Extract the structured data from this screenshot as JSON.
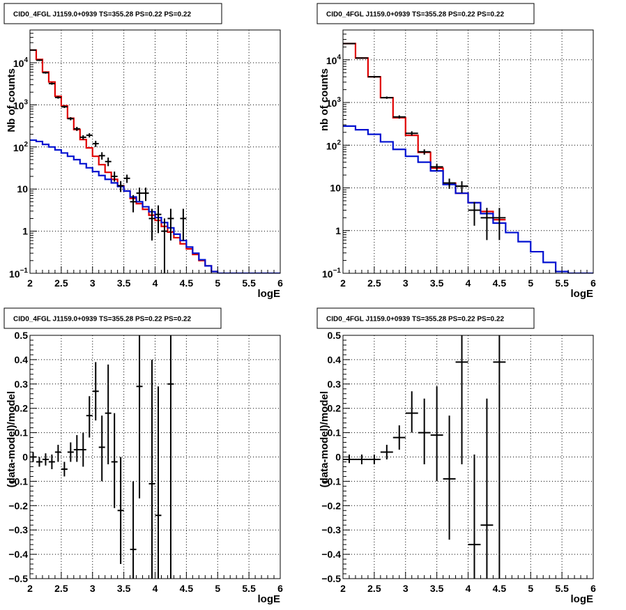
{
  "colors": {
    "data": "#000000",
    "total_model": "#e00000",
    "background_model": "#0010d0",
    "grid": "#000000"
  },
  "chart_data": [
    {
      "type": "line",
      "panel": "top-left",
      "title": "CID0_4FGL J1159.0+0939 TS=355.28 PS=0.22 PS=0.22",
      "xlabel": "logE",
      "ylabel": "Nb of counts",
      "xlim": [
        2,
        6
      ],
      "ylim": [
        0.1,
        60000
      ],
      "yscale": "log",
      "grid": true,
      "x_ticks": [
        "2",
        "2.5",
        "3",
        "3.5",
        "4",
        "4.5",
        "5",
        "5.5",
        "6"
      ],
      "y_ticks": [
        {
          "v": 0.1,
          "base": "10",
          "exp": "−1"
        },
        {
          "v": 1,
          "label": "1"
        },
        {
          "v": 10,
          "label": "10"
        },
        {
          "v": 100,
          "base": "10",
          "exp": "2"
        },
        {
          "v": 1000,
          "base": "10",
          "exp": "3"
        },
        {
          "v": 10000,
          "base": "10",
          "exp": "4"
        }
      ],
      "bin_edges": [
        2.0,
        2.1,
        2.2,
        2.3,
        2.4,
        2.5,
        2.6,
        2.7,
        2.8,
        2.9,
        3.0,
        3.1,
        3.2,
        3.3,
        3.4,
        3.5,
        3.6,
        3.7,
        3.8,
        3.9,
        4.0,
        4.1,
        4.2,
        4.3,
        4.4,
        4.5,
        4.6,
        4.7,
        4.8,
        4.9,
        5.0,
        5.1,
        5.2,
        5.3,
        5.4,
        5.5,
        5.6,
        5.7,
        5.8,
        5.9,
        6.0
      ],
      "series": [
        {
          "role": "total_model",
          "values": [
            20000,
            12000,
            6000,
            3500,
            1600,
            950,
            480,
            260,
            150,
            95,
            60,
            38,
            25,
            17,
            12,
            9,
            6,
            4.5,
            3.3,
            2.4,
            1.8,
            1.3,
            0.95,
            0.7,
            0.5,
            0.38,
            0.28,
            0.2,
            0.15,
            0.11
          ]
        },
        {
          "role": "background_model",
          "values": [
            145,
            135,
            115,
            100,
            85,
            72,
            60,
            50,
            40,
            32,
            26,
            21,
            17,
            14,
            11.5,
            9,
            6.5,
            5,
            3.8,
            2.9,
            2.1,
            1.6,
            1.2,
            0.85,
            0.6,
            0.42,
            0.3,
            0.21,
            0.15,
            0.11,
            0.1,
            0.1,
            0.1,
            0.1,
            0.1,
            0.1,
            0.1,
            0.1,
            0.1,
            0.1
          ]
        },
        {
          "role": "data",
          "points": [
            {
              "x": 2.05,
              "y": 20000,
              "lo": 19400,
              "hi": 20600
            },
            {
              "x": 2.15,
              "y": 11500,
              "lo": 11000,
              "hi": 12000
            },
            {
              "x": 2.25,
              "y": 5800,
              "lo": 5500,
              "hi": 6100
            },
            {
              "x": 2.35,
              "y": 3200,
              "lo": 3000,
              "hi": 3400
            },
            {
              "x": 2.45,
              "y": 1500,
              "lo": 1400,
              "hi": 1600
            },
            {
              "x": 2.55,
              "y": 900,
              "lo": 840,
              "hi": 960
            },
            {
              "x": 2.65,
              "y": 470,
              "lo": 430,
              "hi": 510
            },
            {
              "x": 2.75,
              "y": 270,
              "lo": 240,
              "hi": 300
            },
            {
              "x": 2.85,
              "y": 170,
              "lo": 150,
              "hi": 190
            },
            {
              "x": 2.95,
              "y": 190,
              "lo": 168,
              "hi": 212
            },
            {
              "x": 3.05,
              "y": 120,
              "lo": 100,
              "hi": 140
            },
            {
              "x": 3.15,
              "y": 62,
              "lo": 50,
              "hi": 75
            },
            {
              "x": 3.25,
              "y": 45,
              "lo": 35,
              "hi": 56
            },
            {
              "x": 3.35,
              "y": 20,
              "lo": 15,
              "hi": 26
            },
            {
              "x": 3.45,
              "y": 12,
              "lo": 8.5,
              "hi": 15.5
            },
            {
              "x": 3.55,
              "y": 18,
              "lo": 14,
              "hi": 22
            },
            {
              "x": 3.65,
              "y": 5,
              "lo": 2.8,
              "hi": 7.2
            },
            {
              "x": 3.75,
              "y": 8,
              "lo": 5.2,
              "hi": 10.8
            },
            {
              "x": 3.85,
              "y": 8,
              "lo": 5.2,
              "hi": 10.8
            },
            {
              "x": 3.95,
              "y": 2,
              "lo": 0.6,
              "hi": 3.4
            },
            {
              "x": 4.05,
              "y": 2.5,
              "lo": 0.9,
              "hi": 4.1
            },
            {
              "x": 4.15,
              "y": 1,
              "lo": 0.1,
              "hi": 2.0
            },
            {
              "x": 4.25,
              "y": 2,
              "lo": 0.6,
              "hi": 3.4
            },
            {
              "x": 4.45,
              "y": 2,
              "lo": 0.6,
              "hi": 3.4
            }
          ]
        }
      ]
    },
    {
      "type": "line",
      "panel": "top-right",
      "title": "CID0_4FGL J1159.0+0939 TS=355.28 PS=0.22 PS=0.22",
      "xlabel": "logE",
      "ylabel": "nb of counts",
      "xlim": [
        2,
        6
      ],
      "ylim": [
        0.1,
        50000
      ],
      "yscale": "log",
      "grid": true,
      "x_ticks": [
        "2",
        "2.5",
        "3",
        "3.5",
        "4",
        "4.5",
        "5",
        "5.5",
        "6"
      ],
      "y_ticks": [
        {
          "v": 0.1,
          "base": "10",
          "exp": "−1"
        },
        {
          "v": 1,
          "label": "1"
        },
        {
          "v": 10,
          "label": "10"
        },
        {
          "v": 100,
          "base": "10",
          "exp": "2"
        },
        {
          "v": 1000,
          "base": "10",
          "exp": "3"
        },
        {
          "v": 10000,
          "base": "10",
          "exp": "4"
        }
      ],
      "bin_edges": [
        2.0,
        2.2,
        2.4,
        2.6,
        2.8,
        3.0,
        3.2,
        3.4,
        3.6,
        3.8,
        4.0,
        4.2,
        4.4,
        4.6,
        4.8,
        5.0,
        5.2,
        5.4,
        5.6,
        5.8,
        6.0
      ],
      "series": [
        {
          "role": "total_model",
          "values": [
            24000,
            11000,
            4000,
            1300,
            440,
            170,
            68,
            29,
            13,
            7.5,
            4.5,
            2.8,
            1.8
          ]
        },
        {
          "role": "background_model",
          "values": [
            280,
            230,
            180,
            120,
            80,
            55,
            40,
            25,
            12,
            7.5,
            4.5,
            2.5,
            1.5,
            0.9,
            0.55,
            0.32,
            0.18,
            0.11,
            0.1,
            0.1
          ]
        },
        {
          "role": "data",
          "points": [
            {
              "x": 2.1,
              "y": 24000,
              "lo": 23400,
              "hi": 24600
            },
            {
              "x": 2.3,
              "y": 11000,
              "lo": 10600,
              "hi": 11400
            },
            {
              "x": 2.5,
              "y": 4000,
              "lo": 3800,
              "hi": 4200
            },
            {
              "x": 2.7,
              "y": 1300,
              "lo": 1220,
              "hi": 1380
            },
            {
              "x": 2.9,
              "y": 460,
              "lo": 420,
              "hi": 500
            },
            {
              "x": 3.1,
              "y": 190,
              "lo": 168,
              "hi": 212
            },
            {
              "x": 3.3,
              "y": 70,
              "lo": 60,
              "hi": 80
            },
            {
              "x": 3.5,
              "y": 31,
              "lo": 25,
              "hi": 37
            },
            {
              "x": 3.7,
              "y": 13,
              "lo": 9.5,
              "hi": 16.5
            },
            {
              "x": 3.9,
              "y": 11,
              "lo": 7.7,
              "hi": 14.3
            },
            {
              "x": 4.1,
              "y": 3,
              "lo": 1.3,
              "hi": 4.7
            },
            {
              "x": 4.3,
              "y": 2,
              "lo": 0.6,
              "hi": 3.4
            },
            {
              "x": 4.5,
              "y": 2,
              "lo": 0.6,
              "hi": 3.4
            }
          ]
        }
      ]
    },
    {
      "type": "scatter",
      "panel": "bottom-left",
      "title": "CID0_4FGL J1159.0+0939 TS=355.28 PS=0.22 PS=0.22",
      "xlabel": "logE",
      "ylabel": "(data-model)/model",
      "xlim": [
        2,
        6
      ],
      "ylim": [
        -0.5,
        0.5
      ],
      "yscale": "linear",
      "grid": true,
      "x_ticks": [
        "2",
        "2.5",
        "3",
        "3.5",
        "4",
        "4.5",
        "5",
        "5.5",
        "6"
      ],
      "y_ticks": [
        {
          "v": -0.5,
          "label": "−0.5"
        },
        {
          "v": -0.4,
          "label": "−0.4"
        },
        {
          "v": -0.3,
          "label": "−0.3"
        },
        {
          "v": -0.2,
          "label": "−0.2"
        },
        {
          "v": -0.1,
          "label": "−0.1"
        },
        {
          "v": 0,
          "label": "0"
        },
        {
          "v": 0.1,
          "label": "0.1"
        },
        {
          "v": 0.2,
          "label": "0.2"
        },
        {
          "v": 0.3,
          "label": "0.3"
        },
        {
          "v": 0.4,
          "label": "0.4"
        },
        {
          "v": 0.5,
          "label": "0.5"
        }
      ],
      "half_width": 0.05,
      "points": [
        {
          "x": 2.05,
          "y": 0.0,
          "lo": -0.02,
          "hi": 0.02
        },
        {
          "x": 2.15,
          "y": -0.02,
          "lo": -0.04,
          "hi": 0.0
        },
        {
          "x": 2.25,
          "y": -0.01,
          "lo": -0.035,
          "hi": 0.015
        },
        {
          "x": 2.35,
          "y": -0.02,
          "lo": -0.05,
          "hi": 0.01
        },
        {
          "x": 2.45,
          "y": 0.02,
          "lo": -0.02,
          "hi": 0.05
        },
        {
          "x": 2.55,
          "y": -0.05,
          "lo": -0.08,
          "hi": -0.02
        },
        {
          "x": 2.65,
          "y": 0.02,
          "lo": -0.02,
          "hi": 0.06
        },
        {
          "x": 2.75,
          "y": 0.03,
          "lo": -0.02,
          "hi": 0.09
        },
        {
          "x": 2.85,
          "y": 0.03,
          "lo": -0.04,
          "hi": 0.1
        },
        {
          "x": 2.95,
          "y": 0.17,
          "lo": 0.08,
          "hi": 0.25
        },
        {
          "x": 3.05,
          "y": 0.27,
          "lo": 0.15,
          "hi": 0.39
        },
        {
          "x": 3.15,
          "y": 0.04,
          "lo": -0.1,
          "hi": 0.17
        },
        {
          "x": 3.25,
          "y": 0.18,
          "lo": -0.03,
          "hi": 0.38
        },
        {
          "x": 3.35,
          "y": -0.02,
          "lo": -0.21,
          "hi": 0.18
        },
        {
          "x": 3.45,
          "y": -0.22,
          "lo": -0.44,
          "hi": 0.0
        },
        {
          "x": 3.65,
          "y": -0.38,
          "lo": -0.5,
          "hi": -0.1
        },
        {
          "x": 3.75,
          "y": 0.29,
          "lo": -0.17,
          "hi": 0.5
        },
        {
          "x": 3.95,
          "y": -0.11,
          "lo": -0.5,
          "hi": 0.4
        },
        {
          "x": 4.05,
          "y": -0.24,
          "lo": -0.5,
          "hi": 0.29
        },
        {
          "x": 4.25,
          "y": 0.3,
          "lo": -0.5,
          "hi": 0.5
        }
      ]
    },
    {
      "type": "scatter",
      "panel": "bottom-right",
      "title": "CID0_4FGL J1159.0+0939 TS=355.28 PS=0.22 PS=0.22",
      "xlabel": "logE",
      "ylabel": "(data-model)/model",
      "xlim": [
        2,
        6
      ],
      "ylim": [
        -0.5,
        0.5
      ],
      "yscale": "linear",
      "grid": true,
      "x_ticks": [
        "2",
        "2.5",
        "3",
        "3.5",
        "4",
        "4.5",
        "5",
        "5.5",
        "6"
      ],
      "y_ticks": [
        {
          "v": -0.5,
          "label": "−0.5"
        },
        {
          "v": -0.4,
          "label": "−0.4"
        },
        {
          "v": -0.3,
          "label": "−0.3"
        },
        {
          "v": -0.2,
          "label": "−0.2"
        },
        {
          "v": -0.1,
          "label": "−0.1"
        },
        {
          "v": 0,
          "label": "0"
        },
        {
          "v": 0.1,
          "label": "0.1"
        },
        {
          "v": 0.2,
          "label": "0.2"
        },
        {
          "v": 0.3,
          "label": "0.3"
        },
        {
          "v": 0.4,
          "label": "0.4"
        },
        {
          "v": 0.5,
          "label": "0.5"
        }
      ],
      "half_width": 0.1,
      "points": [
        {
          "x": 2.1,
          "y": -0.01,
          "lo": -0.025,
          "hi": 0.01
        },
        {
          "x": 2.3,
          "y": -0.01,
          "lo": -0.03,
          "hi": 0.01
        },
        {
          "x": 2.5,
          "y": -0.01,
          "lo": -0.03,
          "hi": 0.01
        },
        {
          "x": 2.7,
          "y": 0.02,
          "lo": -0.01,
          "hi": 0.05
        },
        {
          "x": 2.9,
          "y": 0.08,
          "lo": 0.03,
          "hi": 0.13
        },
        {
          "x": 3.1,
          "y": 0.18,
          "lo": 0.1,
          "hi": 0.27
        },
        {
          "x": 3.3,
          "y": 0.1,
          "lo": -0.03,
          "hi": 0.24
        },
        {
          "x": 3.5,
          "y": 0.09,
          "lo": -0.1,
          "hi": 0.29
        },
        {
          "x": 3.7,
          "y": -0.09,
          "lo": -0.34,
          "hi": 0.17
        },
        {
          "x": 3.9,
          "y": 0.39,
          "lo": -0.03,
          "hi": 0.5
        },
        {
          "x": 4.1,
          "y": -0.36,
          "lo": -0.5,
          "hi": 0.01
        },
        {
          "x": 4.3,
          "y": -0.28,
          "lo": -0.5,
          "hi": 0.24
        },
        {
          "x": 4.5,
          "y": 0.39,
          "lo": -0.5,
          "hi": 0.5
        }
      ]
    }
  ]
}
